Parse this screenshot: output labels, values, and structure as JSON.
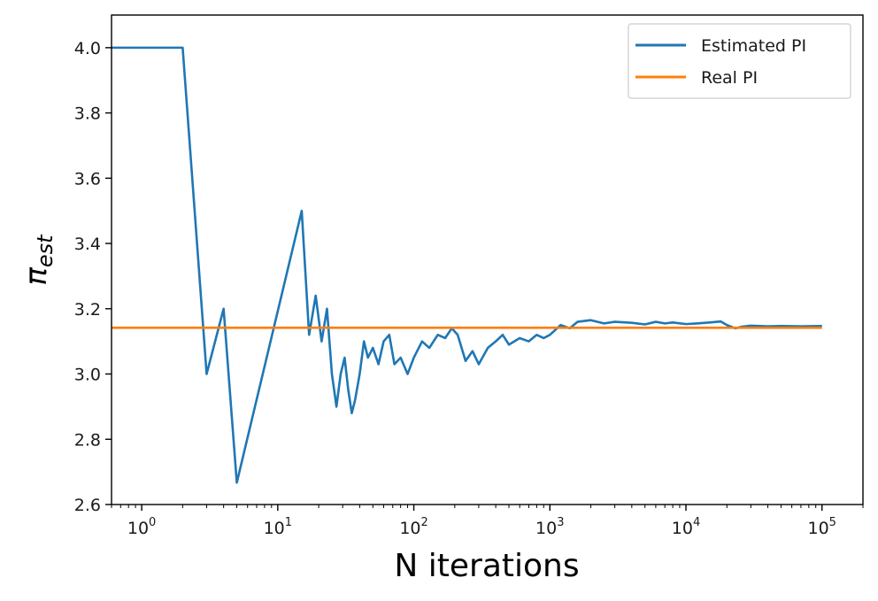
{
  "chart_data": {
    "type": "line",
    "title": "",
    "xlabel": "N iterations",
    "ylabel": "π",
    "ylabel_subscript": "est",
    "xscale": "log",
    "xlim": [
      0.6,
      200000
    ],
    "ylim": [
      2.6,
      4.1
    ],
    "xticks": [
      {
        "value": 1,
        "base": "10",
        "exp": "0"
      },
      {
        "value": 10,
        "base": "10",
        "exp": "1"
      },
      {
        "value": 100,
        "base": "10",
        "exp": "2"
      },
      {
        "value": 1000,
        "base": "10",
        "exp": "3"
      },
      {
        "value": 10000,
        "base": "10",
        "exp": "4"
      },
      {
        "value": 100000,
        "base": "10",
        "exp": "5"
      }
    ],
    "yticks": [
      "2.6",
      "2.8",
      "3.0",
      "3.2",
      "3.4",
      "3.6",
      "3.8",
      "4.0"
    ],
    "grid": false,
    "legend_position": "top-right",
    "series": [
      {
        "name": "Estimated PI",
        "color": "#1f77b4",
        "x": [
          0.6,
          1,
          2,
          3,
          4,
          5,
          15,
          17,
          19,
          21,
          23,
          25,
          27,
          29,
          31,
          33,
          35,
          37,
          40,
          43,
          46,
          50,
          55,
          60,
          66,
          72,
          80,
          90,
          100,
          115,
          130,
          150,
          170,
          190,
          210,
          240,
          270,
          300,
          350,
          400,
          450,
          500,
          600,
          700,
          800,
          900,
          1000,
          1200,
          1400,
          1600,
          2000,
          2500,
          3000,
          4000,
          5000,
          6000,
          7000,
          8000,
          10000,
          12000,
          15000,
          18000,
          20000,
          23000,
          26000,
          30000,
          40000,
          50000,
          70000,
          100000
        ],
        "y": [
          4.0,
          4.0,
          4.0,
          3.0,
          3.2,
          2.667,
          3.5,
          3.12,
          3.24,
          3.1,
          3.2,
          3.0,
          2.9,
          3.0,
          3.05,
          2.95,
          2.88,
          2.92,
          3.0,
          3.1,
          3.05,
          3.08,
          3.03,
          3.1,
          3.12,
          3.03,
          3.05,
          3.0,
          3.05,
          3.1,
          3.08,
          3.12,
          3.11,
          3.14,
          3.12,
          3.04,
          3.07,
          3.03,
          3.08,
          3.1,
          3.12,
          3.09,
          3.11,
          3.1,
          3.12,
          3.11,
          3.12,
          3.15,
          3.14,
          3.16,
          3.165,
          3.155,
          3.16,
          3.157,
          3.152,
          3.16,
          3.155,
          3.158,
          3.153,
          3.155,
          3.158,
          3.161,
          3.15,
          3.14,
          3.145,
          3.148,
          3.146,
          3.147,
          3.146,
          3.147
        ]
      },
      {
        "name": "Real PI",
        "color": "#ff7f0e",
        "x": [
          0.6,
          100000
        ],
        "y": [
          3.14159,
          3.14159
        ]
      }
    ]
  }
}
